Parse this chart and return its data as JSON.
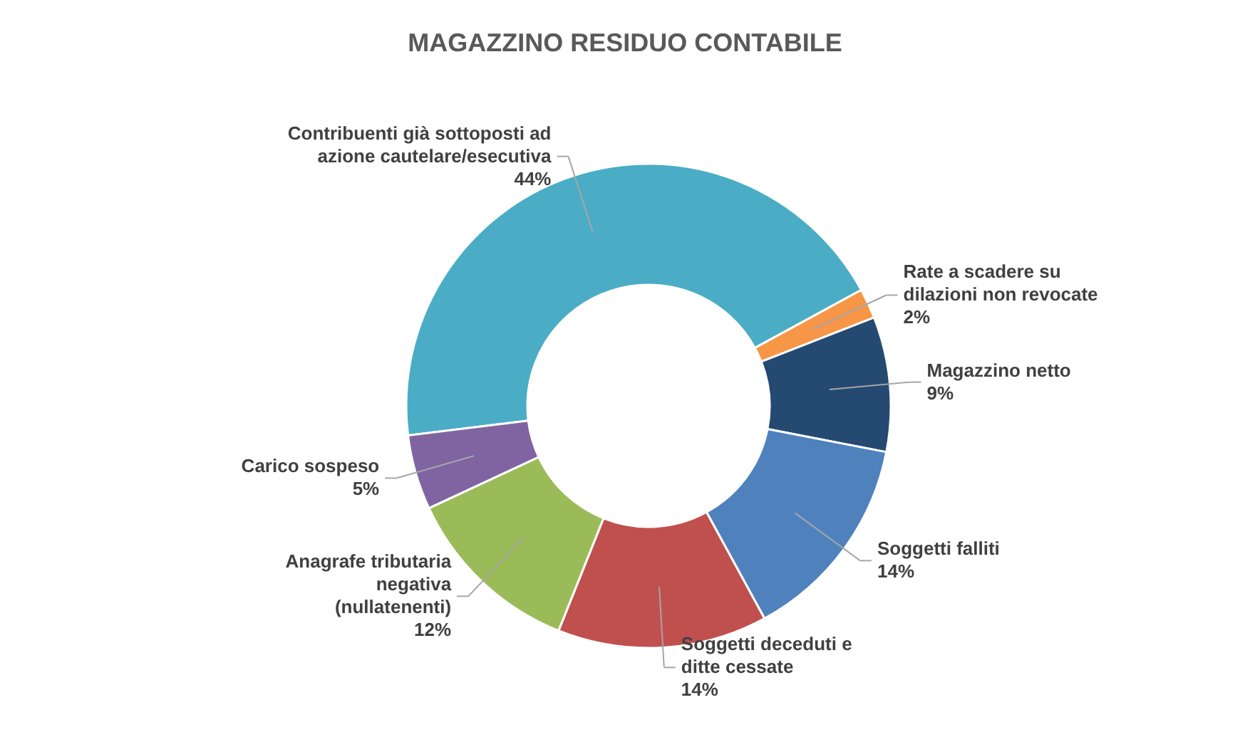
{
  "chart_data": {
    "type": "donut",
    "title": "MAGAZZINO RESIDUO CONTABILE",
    "categories": [
      "Contribuenti già sottoposti ad azione cautelare/esecutiva",
      "Rate a scadere su dilazioni non revocate",
      "Magazzino netto",
      "Soggetti falliti",
      "Soggetti deceduti e ditte cessate",
      "Anagrafe tributaria negativa (nullatenenti)",
      "Carico sospeso"
    ],
    "values": [
      44,
      2,
      9,
      14,
      14,
      12,
      5
    ],
    "value_labels": [
      "44%",
      "2%",
      "9%",
      "14%",
      "14%",
      "12%",
      "5%"
    ],
    "colors": [
      "#4bacc6",
      "#f79646",
      "#254a72",
      "#4f81bd",
      "#c0504d",
      "#9bbb59",
      "#8064a2"
    ]
  }
}
